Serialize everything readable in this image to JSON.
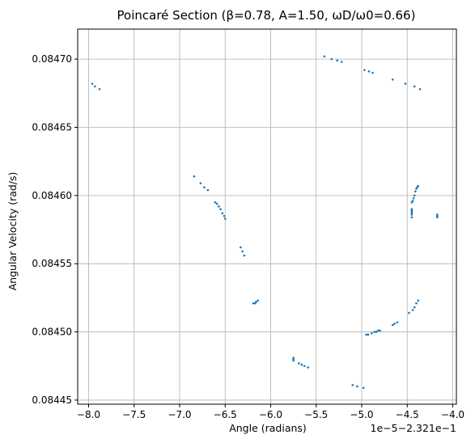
{
  "chart_data": {
    "type": "scatter",
    "title": "Poincaré Section (β=0.78, A=1.50, ωD/ω0=0.66)",
    "xlabel": "Angle (radians)",
    "ylabel": "Angular Velocity (rad/s)",
    "x_offset_label": "1e−5−2.321e−1",
    "xlim": [
      -8.12,
      -3.96
    ],
    "ylim": [
      0.084447,
      0.084722
    ],
    "x_ticks": [
      -8.0,
      -7.5,
      -7.0,
      -6.5,
      -6.0,
      -5.5,
      -5.0,
      -4.5,
      -4.0
    ],
    "x_tick_labels": [
      "−8.0",
      "−7.5",
      "−7.0",
      "−6.5",
      "−6.0",
      "−5.5",
      "−5.0",
      "−4.5",
      "−4.0"
    ],
    "y_ticks": [
      0.08445,
      0.0845,
      0.08455,
      0.0846,
      0.08465,
      0.0847
    ],
    "y_tick_labels": [
      "0.08445",
      "0.08450",
      "0.08455",
      "0.08460",
      "0.08465",
      "0.08470"
    ],
    "grid": true,
    "point_color": "#1f77b4",
    "points": [
      [
        -7.96,
        0.084682
      ],
      [
        -7.93,
        0.08468
      ],
      [
        -7.88,
        0.084678
      ],
      [
        -5.41,
        0.084702
      ],
      [
        -5.33,
        0.0847
      ],
      [
        -5.27,
        0.084699
      ],
      [
        -5.22,
        0.084698
      ],
      [
        -4.97,
        0.084692
      ],
      [
        -4.92,
        0.084691
      ],
      [
        -4.88,
        0.08469
      ],
      [
        -4.66,
        0.084685
      ],
      [
        -4.52,
        0.084682
      ],
      [
        -4.42,
        0.08468
      ],
      [
        -4.36,
        0.084678
      ],
      [
        -6.84,
        0.084614
      ],
      [
        -6.77,
        0.084609
      ],
      [
        -6.73,
        0.084606
      ],
      [
        -6.69,
        0.084604
      ],
      [
        -6.61,
        0.084595
      ],
      [
        -6.59,
        0.084594
      ],
      [
        -6.57,
        0.084592
      ],
      [
        -6.55,
        0.08459
      ],
      [
        -6.53,
        0.084587
      ],
      [
        -6.51,
        0.084585
      ],
      [
        -6.5,
        0.084583
      ],
      [
        -6.33,
        0.084562
      ],
      [
        -6.31,
        0.084559
      ],
      [
        -6.29,
        0.084556
      ],
      [
        -6.19,
        0.084521
      ],
      [
        -6.17,
        0.084521
      ],
      [
        -6.16,
        0.084522
      ],
      [
        -6.14,
        0.084523
      ],
      [
        -4.38,
        0.084607
      ],
      [
        -4.39,
        0.084606
      ],
      [
        -4.4,
        0.084605
      ],
      [
        -4.41,
        0.084603
      ],
      [
        -4.42,
        0.0846
      ],
      [
        -4.43,
        0.084598
      ],
      [
        -4.44,
        0.084596
      ],
      [
        -4.45,
        0.084595
      ],
      [
        -4.45,
        0.08459
      ],
      [
        -4.45,
        0.084589
      ],
      [
        -4.45,
        0.084588
      ],
      [
        -4.45,
        0.084587
      ],
      [
        -4.45,
        0.084586
      ],
      [
        -4.45,
        0.084584
      ],
      [
        -4.17,
        0.084586
      ],
      [
        -4.17,
        0.084585
      ],
      [
        -4.17,
        0.084584
      ],
      [
        -4.38,
        0.084523
      ],
      [
        -4.4,
        0.084521
      ],
      [
        -4.42,
        0.084518
      ],
      [
        -4.44,
        0.084516
      ],
      [
        -4.48,
        0.084514
      ],
      [
        -4.61,
        0.084507
      ],
      [
        -4.64,
        0.084506
      ],
      [
        -4.66,
        0.084505
      ],
      [
        -4.8,
        0.084501
      ],
      [
        -4.82,
        0.084501
      ],
      [
        -4.84,
        0.0845
      ],
      [
        -4.86,
        0.0845
      ],
      [
        -4.89,
        0.084499
      ],
      [
        -4.93,
        0.084498
      ],
      [
        -4.95,
        0.084498
      ],
      [
        -5.75,
        0.084481
      ],
      [
        -5.75,
        0.08448
      ],
      [
        -5.75,
        0.084479
      ],
      [
        -5.69,
        0.084477
      ],
      [
        -5.66,
        0.084476
      ],
      [
        -5.63,
        0.084475
      ],
      [
        -5.59,
        0.084474
      ],
      [
        -5.1,
        0.084461
      ],
      [
        -5.05,
        0.08446
      ],
      [
        -4.98,
        0.084459
      ]
    ]
  }
}
